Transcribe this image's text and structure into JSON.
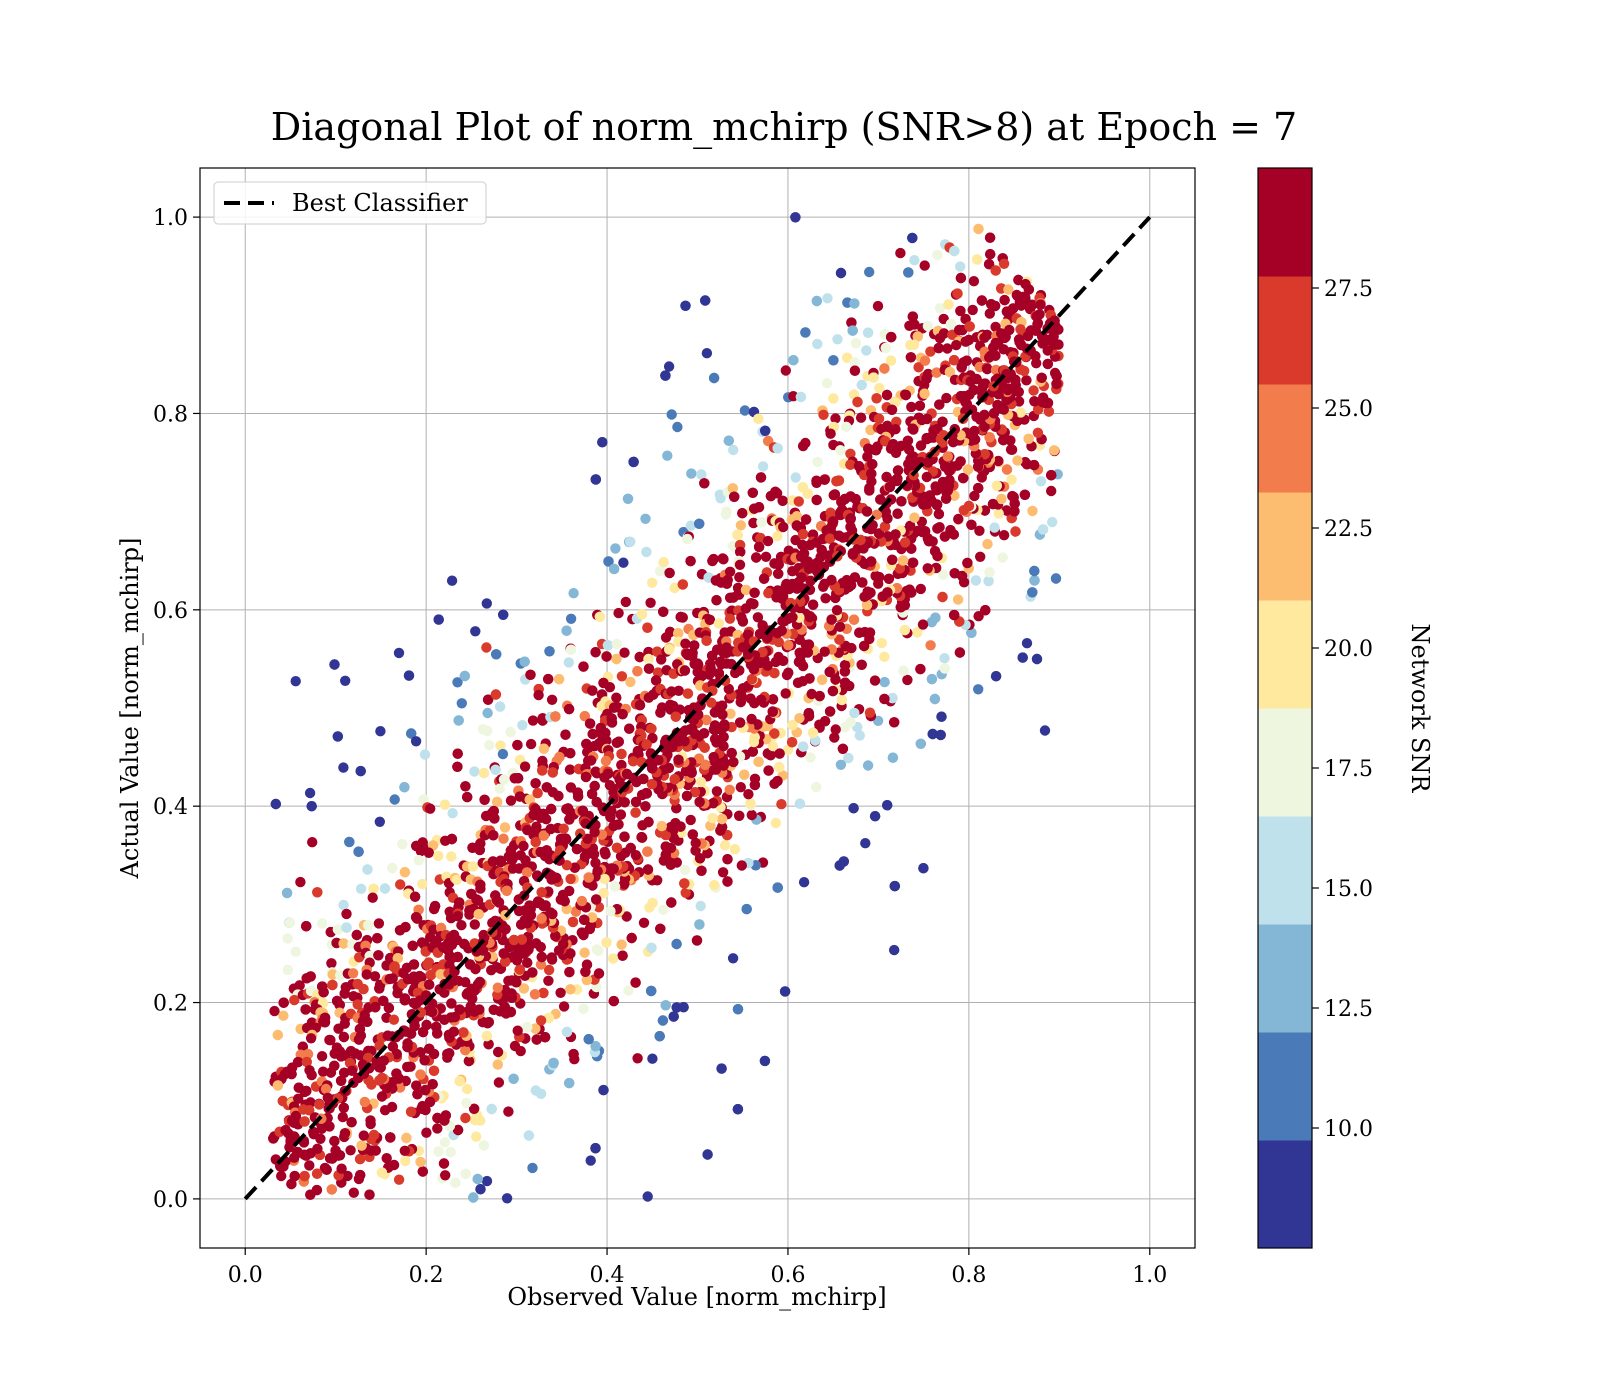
{
  "chart_data": {
    "type": "scatter",
    "title": "Diagonal Plot of norm_mchirp (SNR>8) at Epoch = 7",
    "xlabel": "Observed Value [norm_mchirp]",
    "ylabel": "Actual Value [norm_mchirp]",
    "xlim": [
      -0.05,
      1.05
    ],
    "ylim": [
      -0.05,
      1.05
    ],
    "xticks": [
      "0.0",
      "0.2",
      "0.4",
      "0.6",
      "0.8",
      "1.0"
    ],
    "yticks": [
      "0.0",
      "0.2",
      "0.4",
      "0.6",
      "0.8",
      "1.0"
    ],
    "grid": true,
    "legend": {
      "position": "top-left",
      "entries": [
        {
          "label": "Best Classifier",
          "style": "dashed",
          "color": "#000000"
        }
      ]
    },
    "reference_line": {
      "name": "Best Classifier",
      "x": [
        0.0,
        1.0
      ],
      "y": [
        0.0,
        1.0
      ]
    },
    "scatter": {
      "description_color_by": "Network SNR",
      "x_range": [
        0.03,
        0.9
      ],
      "y_range": [
        0.0,
        1.0
      ],
      "core_band_halfwidth": 0.06,
      "outer_spread": 0.22
    },
    "colorbar": {
      "label": "Network SNR",
      "vmin": 7.5,
      "vmax": 30.0,
      "ticks": [
        "10.0",
        "12.5",
        "15.0",
        "17.5",
        "20.0",
        "22.5",
        "25.0",
        "27.5"
      ],
      "tick_values": [
        10.0,
        12.5,
        15.0,
        17.5,
        20.0,
        22.5,
        25.0,
        27.5
      ],
      "colors": [
        "#313695",
        "#4575b4",
        "#74add1",
        "#abd9e9",
        "#e0f3f8",
        "#fee090",
        "#fdae61",
        "#f46d43",
        "#d73027",
        "#a50026"
      ],
      "displayed_colors": [
        "#313695",
        "#4a7ab7",
        "#84b6d6",
        "#bfe1ec",
        "#eef6df",
        "#fee99f",
        "#fdbd70",
        "#f27c4c",
        "#d93a2c",
        "#a50026"
      ]
    }
  }
}
